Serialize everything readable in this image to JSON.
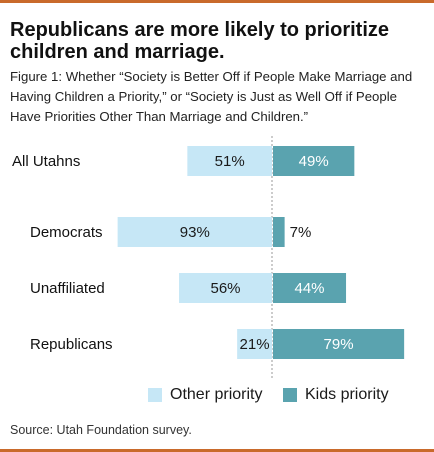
{
  "title": "Republicans are more likely to prioritize children and marriage.",
  "subtitle": "Figure 1: Whether “Society is Better Off if People Make Marriage and Having Children a Priority,” or “Society is Just as Well Off if People Have Priorities Other Than Marriage and Children.”",
  "source": "Source: Utah Foundation survey.",
  "colors": {
    "other": "#c6e7f6",
    "kids": "#5aa3af",
    "accent": "#c96a2b",
    "divider": "#9a9a9a"
  },
  "chart_data": {
    "type": "bar",
    "orientation": "horizontal-diverging",
    "categories": [
      "All Utahns",
      "Democrats",
      "Unaffiliated",
      "Republicans"
    ],
    "series": [
      {
        "name": "Other priority",
        "values": [
          51,
          93,
          56,
          21
        ],
        "labels": [
          "51%",
          "93%",
          "56%",
          "21%"
        ]
      },
      {
        "name": "Kids priority",
        "values": [
          49,
          7,
          44,
          79
        ],
        "labels": [
          "49%",
          "7%",
          "44%",
          "79%"
        ]
      }
    ],
    "title": "Republicans are more likely to prioritize children and marriage.",
    "xlabel": "",
    "ylabel": "",
    "xlim": [
      0,
      100
    ],
    "grid": false,
    "legend_position": "bottom"
  }
}
